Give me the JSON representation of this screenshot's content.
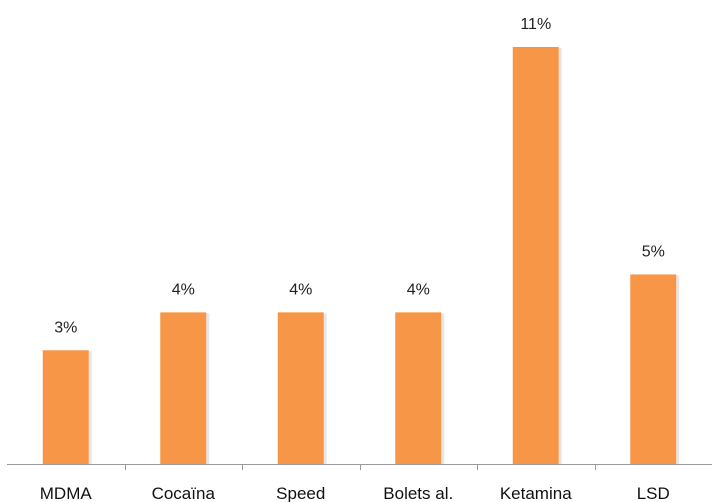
{
  "chart_data": {
    "type": "bar",
    "categories": [
      "MDMA",
      "Cocaïna",
      "Speed",
      "Bolets al.",
      "Ketamina",
      "LSD"
    ],
    "values": [
      3,
      4,
      4,
      4,
      11,
      5
    ],
    "value_labels": [
      "3%",
      "4%",
      "4%",
      "4%",
      "11%",
      "5%"
    ],
    "title": "",
    "xlabel": "",
    "ylabel": "",
    "ylim": [
      0,
      11
    ],
    "grid": false,
    "legend": "none",
    "bar_color": "#F79646"
  }
}
